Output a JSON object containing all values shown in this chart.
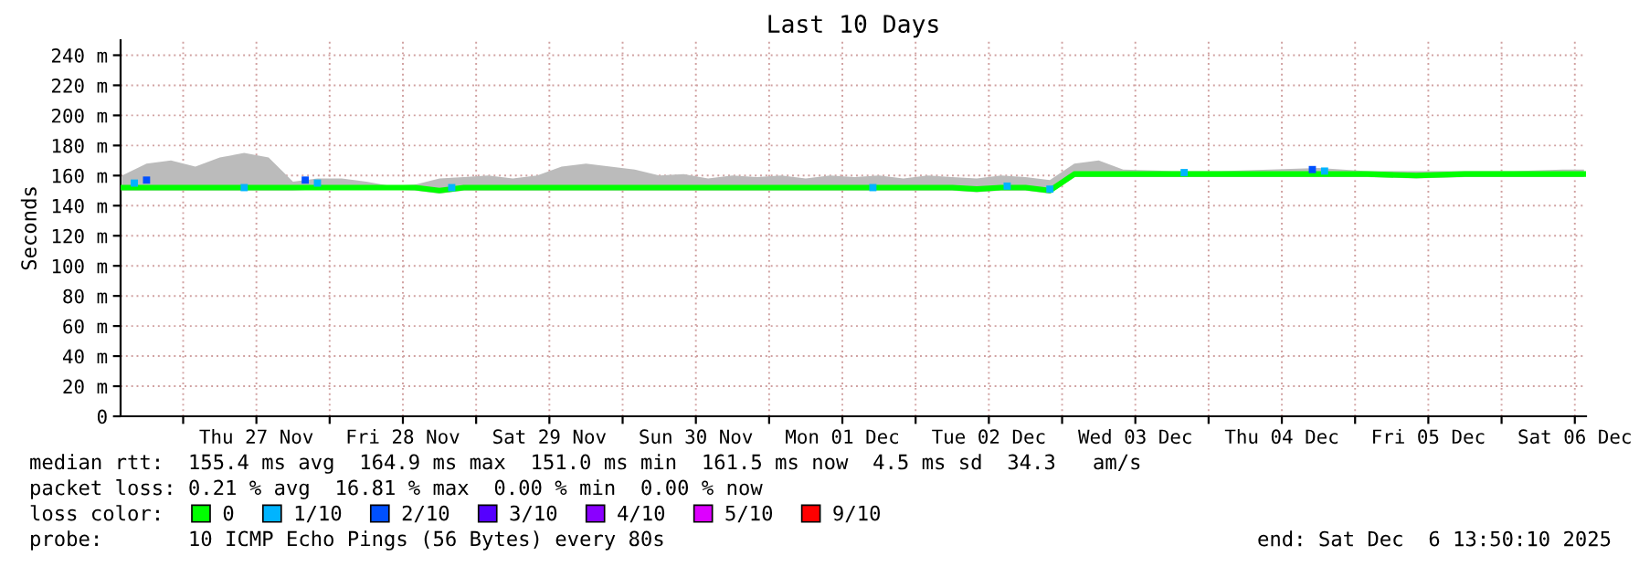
{
  "chart_data": {
    "type": "line",
    "title": "Last 10 Days",
    "ylabel": "Seconds",
    "xlim": [
      "2025-11-26T13:45",
      "2025-12-06T13:50"
    ],
    "xticks": [
      {
        "value": "2025-11-27T00:00",
        "label": null
      },
      {
        "value": "2025-11-27T12:00",
        "label": "Thu 27 Nov"
      },
      {
        "value": "2025-11-28T00:00",
        "label": null
      },
      {
        "value": "2025-11-28T12:00",
        "label": "Fri 28 Nov"
      },
      {
        "value": "2025-11-29T00:00",
        "label": null
      },
      {
        "value": "2025-11-29T12:00",
        "label": "Sat 29 Nov"
      },
      {
        "value": "2025-11-30T00:00",
        "label": null
      },
      {
        "value": "2025-11-30T12:00",
        "label": "Sun 30 Nov"
      },
      {
        "value": "2025-12-01T00:00",
        "label": null
      },
      {
        "value": "2025-12-01T12:00",
        "label": "Mon 01 Dec"
      },
      {
        "value": "2025-12-02T00:00",
        "label": null
      },
      {
        "value": "2025-12-02T12:00",
        "label": "Tue 02 Dec"
      },
      {
        "value": "2025-12-03T00:00",
        "label": null
      },
      {
        "value": "2025-12-03T12:00",
        "label": "Wed 03 Dec"
      },
      {
        "value": "2025-12-04T00:00",
        "label": null
      },
      {
        "value": "2025-12-04T12:00",
        "label": "Thu 04 Dec"
      },
      {
        "value": "2025-12-05T00:00",
        "label": null
      },
      {
        "value": "2025-12-05T12:00",
        "label": "Fri 05 Dec"
      },
      {
        "value": "2025-12-06T00:00",
        "label": null
      },
      {
        "value": "2025-12-06T12:00",
        "label": "Sat 06 Dec"
      }
    ],
    "ylim": [
      0,
      250
    ],
    "yticks": [
      0,
      {
        "value": 20,
        "label": "20 m"
      },
      {
        "value": 40,
        "label": "40 m"
      },
      {
        "value": 60,
        "label": "60 m"
      },
      {
        "value": 80,
        "label": "80 m"
      },
      {
        "value": 100,
        "label": "100 m"
      },
      {
        "value": 120,
        "label": "120 m"
      },
      {
        "value": 140,
        "label": "140 m"
      },
      {
        "value": 160,
        "label": "160 m"
      },
      {
        "value": 180,
        "label": "180 m"
      },
      {
        "value": 200,
        "label": "200 m"
      },
      {
        "value": 220,
        "label": "220 m"
      },
      {
        "value": 240,
        "label": "240 m"
      }
    ],
    "grid": true,
    "legend": "bottom",
    "legend_title": "loss color:",
    "series": [
      {
        "name": "0",
        "color": "#00ff00",
        "x": [
          "2025-11-26T14:00",
          "2025-11-26T18:00",
          "2025-11-26T22:00",
          "2025-11-27T02:00",
          "2025-11-27T06:00",
          "2025-11-27T10:00",
          "2025-11-27T14:00",
          "2025-11-27T18:00",
          "2025-11-27T22:00",
          "2025-11-28T02:00",
          "2025-11-28T06:00",
          "2025-11-28T10:00",
          "2025-11-28T14:00",
          "2025-11-28T18:00",
          "2025-11-28T22:00",
          "2025-11-29T02:00",
          "2025-11-29T06:00",
          "2025-11-29T10:00",
          "2025-11-29T14:00",
          "2025-11-29T18:00",
          "2025-11-29T22:00",
          "2025-11-30T02:00",
          "2025-11-30T06:00",
          "2025-11-30T10:00",
          "2025-11-30T14:00",
          "2025-11-30T18:00",
          "2025-11-30T22:00",
          "2025-12-01T02:00",
          "2025-12-01T06:00",
          "2025-12-01T10:00",
          "2025-12-01T14:00",
          "2025-12-01T18:00",
          "2025-12-01T22:00",
          "2025-12-02T02:00",
          "2025-12-02T06:00",
          "2025-12-02T10:00",
          "2025-12-02T14:00",
          "2025-12-02T18:00",
          "2025-12-02T22:00",
          "2025-12-03T02:00",
          "2025-12-03T06:00",
          "2025-12-03T10:00",
          "2025-12-03T18:00",
          "2025-12-04T02:00",
          "2025-12-04T10:00",
          "2025-12-04T18:00",
          "2025-12-05T02:00",
          "2025-12-05T10:00",
          "2025-12-05T18:00",
          "2025-12-06T02:00",
          "2025-12-06T10:00",
          "2025-12-06T13:30"
        ],
        "values": [
          152,
          152,
          152,
          152,
          152,
          152,
          152,
          152,
          152,
          152,
          152,
          152,
          152,
          150,
          152,
          152,
          152,
          152,
          152,
          152,
          152,
          152,
          152,
          152,
          152,
          152,
          152,
          152,
          152,
          152,
          152,
          152,
          152,
          152,
          152,
          151,
          152,
          152,
          150,
          161,
          161,
          161,
          161,
          161,
          161,
          161,
          161,
          160,
          161,
          161,
          161,
          161
        ],
        "lower": [
          150,
          150,
          150,
          150,
          150,
          150,
          150,
          150,
          151,
          151,
          151,
          151,
          150,
          148,
          150,
          150,
          150,
          150,
          150,
          150,
          150,
          150,
          150,
          150,
          150,
          150,
          150,
          150,
          150,
          150,
          150,
          150,
          150,
          150,
          150,
          149,
          150,
          150,
          148,
          159,
          159,
          159,
          159,
          159,
          159,
          159,
          159,
          158,
          159,
          159,
          159,
          159
        ],
        "upper": [
          160,
          168,
          170,
          166,
          172,
          175,
          172,
          156,
          158,
          158,
          156,
          153,
          154,
          158,
          159,
          160,
          158,
          160,
          166,
          168,
          166,
          164,
          160,
          161,
          158,
          160,
          159,
          160,
          158,
          160,
          159,
          160,
          158,
          160,
          159,
          158,
          160,
          159,
          157,
          168,
          170,
          164,
          163,
          163,
          164,
          165,
          163,
          163,
          163,
          163,
          164,
          164
        ]
      },
      {
        "name": "1/10",
        "color": "#00b4ff",
        "type": "scatter",
        "x": [
          "2025-11-26T16:00",
          "2025-11-27T10:00",
          "2025-11-27T22:00",
          "2025-11-28T20:00",
          "2025-12-01T17:00",
          "2025-12-02T15:00",
          "2025-12-02T22:00",
          "2025-12-03T20:00",
          "2025-12-04T19:00"
        ],
        "values": [
          155,
          152,
          155,
          152,
          152,
          153,
          151,
          162,
          163
        ]
      },
      {
        "name": "2/10",
        "color": "#0050ff",
        "type": "scatter",
        "x": [
          "2025-11-26T18:00",
          "2025-11-27T20:00",
          "2025-12-04T17:00"
        ],
        "values": [
          157,
          157,
          164
        ]
      },
      {
        "name": "3/10",
        "color": "#5500ff",
        "type": "scatter"
      },
      {
        "name": "4/10",
        "color": "#8a00ff",
        "type": "scatter"
      },
      {
        "name": "5/10",
        "color": "#dd00ff",
        "type": "scatter"
      },
      {
        "name": "9/10",
        "color": "#ff0000",
        "type": "scatter"
      }
    ],
    "annotations": [
      "median rtt:  155.4 ms avg  164.9 ms max  151.0 ms min  161.5 ms now  4.5 ms sd  34.3   am/s",
      "packet loss: 0.21 % avg  16.81 % max  0.00 % min  0.00 % now",
      "probe:       10 ICMP Echo Pings (56 Bytes) every 80s",
      "end: Sat Dec  6 13:50:10 2025"
    ]
  }
}
